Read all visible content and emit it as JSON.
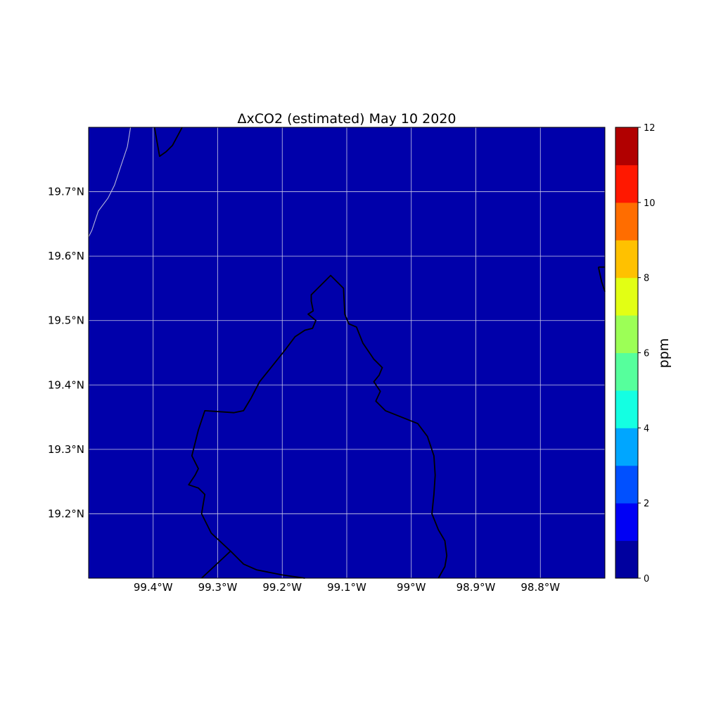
{
  "title": "ΔxCO2 (estimated) May 10 2020",
  "map": {
    "lon_range": [
      -99.5,
      -98.7
    ],
    "lat_range": [
      19.1,
      19.8
    ],
    "background_color": "#0000aa",
    "gridline_color": "#c8c8e6",
    "boundary_color": "#000000",
    "coastline_color": "#b4b4dc",
    "lon_ticks": [
      {
        "value": -99.4,
        "label": "99.4°W"
      },
      {
        "value": -99.3,
        "label": "99.3°W"
      },
      {
        "value": -99.2,
        "label": "99.2°W"
      },
      {
        "value": -99.1,
        "label": "99.1°W"
      },
      {
        "value": -99.0,
        "label": "99°W"
      },
      {
        "value": -98.9,
        "label": "98.9°W"
      },
      {
        "value": -98.8,
        "label": "98.8°W"
      }
    ],
    "lat_ticks": [
      {
        "value": 19.2,
        "label": "19.2°N"
      },
      {
        "value": 19.3,
        "label": "19.3°N"
      },
      {
        "value": 19.4,
        "label": "19.4°N"
      },
      {
        "value": 19.5,
        "label": "19.5°N"
      },
      {
        "value": 19.6,
        "label": "19.6°N"
      },
      {
        "value": 19.7,
        "label": "19.7°N"
      }
    ],
    "boundaries": [
      {
        "name": "cdmx-boundary",
        "points": [
          [
            -99.325,
            19.1
          ],
          [
            -99.28,
            19.142
          ],
          [
            -99.31,
            19.17
          ],
          [
            -99.325,
            19.2
          ],
          [
            -99.32,
            19.23
          ],
          [
            -99.33,
            19.24
          ],
          [
            -99.345,
            19.245
          ],
          [
            -99.335,
            19.26
          ],
          [
            -99.33,
            19.27
          ],
          [
            -99.34,
            19.29
          ],
          [
            -99.33,
            19.33
          ],
          [
            -99.32,
            19.36
          ],
          [
            -99.275,
            19.357
          ],
          [
            -99.26,
            19.36
          ],
          [
            -99.248,
            19.38
          ],
          [
            -99.235,
            19.405
          ],
          [
            -99.215,
            19.43
          ],
          [
            -99.195,
            19.455
          ],
          [
            -99.18,
            19.475
          ],
          [
            -99.165,
            19.485
          ],
          [
            -99.153,
            19.488
          ],
          [
            -99.148,
            19.5
          ],
          [
            -99.16,
            19.51
          ],
          [
            -99.152,
            19.515
          ],
          [
            -99.155,
            19.53
          ],
          [
            -99.155,
            19.54
          ],
          [
            -99.125,
            19.57
          ],
          [
            -99.105,
            19.55
          ],
          [
            -99.103,
            19.51
          ],
          [
            -99.097,
            19.495
          ],
          [
            -99.085,
            19.49
          ],
          [
            -99.075,
            19.465
          ],
          [
            -99.058,
            19.44
          ],
          [
            -99.045,
            19.427
          ],
          [
            -99.05,
            19.415
          ],
          [
            -99.058,
            19.405
          ],
          [
            -99.048,
            19.39
          ],
          [
            -99.055,
            19.375
          ],
          [
            -99.04,
            19.36
          ],
          [
            -99.015,
            19.35
          ],
          [
            -98.99,
            19.34
          ],
          [
            -98.975,
            19.32
          ],
          [
            -98.965,
            19.29
          ],
          [
            -98.963,
            19.26
          ],
          [
            -98.965,
            19.23
          ],
          [
            -98.968,
            19.2
          ],
          [
            -98.958,
            19.175
          ],
          [
            -98.948,
            19.158
          ],
          [
            -98.945,
            19.135
          ],
          [
            -98.948,
            19.118
          ],
          [
            -98.958,
            19.1
          ]
        ]
      },
      {
        "name": "state-boundary-south",
        "points": [
          [
            -99.28,
            19.142
          ],
          [
            -99.26,
            19.122
          ],
          [
            -99.24,
            19.113
          ],
          [
            -99.2,
            19.105
          ],
          [
            -99.165,
            19.1
          ]
        ]
      },
      {
        "name": "state-boundary-north",
        "points": [
          [
            -99.398,
            19.8
          ],
          [
            -99.39,
            19.755
          ],
          [
            -99.38,
            19.762
          ],
          [
            -99.37,
            19.772
          ],
          [
            -99.355,
            19.8
          ]
        ]
      },
      {
        "name": "state-boundary-east",
        "points": [
          [
            -98.71,
            19.583
          ],
          [
            -98.7,
            19.583
          ]
        ]
      },
      {
        "name": "state-boundary-east-2",
        "points": [
          [
            -98.71,
            19.583
          ],
          [
            -98.705,
            19.56
          ],
          [
            -98.7,
            19.545
          ]
        ]
      }
    ],
    "coastlines": [
      {
        "name": "lake-shore",
        "points": [
          [
            -99.5,
            19.63
          ],
          [
            -99.495,
            19.64
          ],
          [
            -99.485,
            19.67
          ],
          [
            -99.47,
            19.69
          ],
          [
            -99.46,
            19.71
          ],
          [
            -99.45,
            19.74
          ],
          [
            -99.44,
            19.77
          ],
          [
            -99.435,
            19.8
          ]
        ]
      }
    ]
  },
  "colorbar": {
    "label": "ppm",
    "min": 0,
    "max": 12,
    "ticks": [
      "0",
      "2",
      "4",
      "6",
      "8",
      "10",
      "12"
    ],
    "colors": [
      "#00009f",
      "#0000f5",
      "#0050ff",
      "#00a6ff",
      "#14ffe2",
      "#56ff9c",
      "#9cff56",
      "#e2ff14",
      "#ffc100",
      "#ff6d00",
      "#ff1800",
      "#b10000"
    ]
  }
}
